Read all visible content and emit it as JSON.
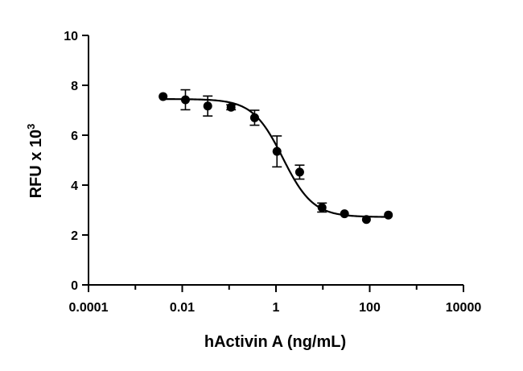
{
  "chart_data": {
    "type": "scatter",
    "xlabel": "hActivin A (ng/mL)",
    "ylabel": {
      "text": "RFU x 10",
      "superscript": "3"
    },
    "x_scale": "log",
    "xlim": [
      0.0001,
      10000
    ],
    "ylim": [
      0,
      10
    ],
    "x_ticks": [
      0.0001,
      0.01,
      1,
      100,
      10000
    ],
    "x_tick_labels": [
      "0.0001",
      "0.01",
      "1",
      "100",
      "10000"
    ],
    "y_ticks": [
      0,
      2,
      4,
      6,
      8,
      10
    ],
    "y_tick_labels": [
      "0",
      "2",
      "4",
      "6",
      "8",
      "10"
    ],
    "grid": false,
    "series": [
      {
        "points": [
          {
            "x": 0.0039,
            "y": 7.55,
            "err": 0.05
          },
          {
            "x": 0.0117,
            "y": 7.42,
            "err": 0.4
          },
          {
            "x": 0.035,
            "y": 7.17,
            "err": 0.4
          },
          {
            "x": 0.11,
            "y": 7.12,
            "err": 0.1
          },
          {
            "x": 0.35,
            "y": 6.7,
            "err": 0.3
          },
          {
            "x": 1.05,
            "y": 5.35,
            "err": 0.62
          },
          {
            "x": 3.2,
            "y": 4.52,
            "err": 0.28
          },
          {
            "x": 9.6,
            "y": 3.1,
            "err": 0.18
          },
          {
            "x": 29,
            "y": 2.85,
            "err": 0.05
          },
          {
            "x": 85,
            "y": 2.62,
            "err": 0.05
          },
          {
            "x": 250,
            "y": 2.8,
            "err": 0.05
          }
        ],
        "fit": {
          "model": "4PL",
          "top": 7.45,
          "bottom": 2.72,
          "ec50": 1.4,
          "hill": 1.35,
          "x_range": [
            0.0039,
            250
          ]
        }
      }
    ]
  }
}
